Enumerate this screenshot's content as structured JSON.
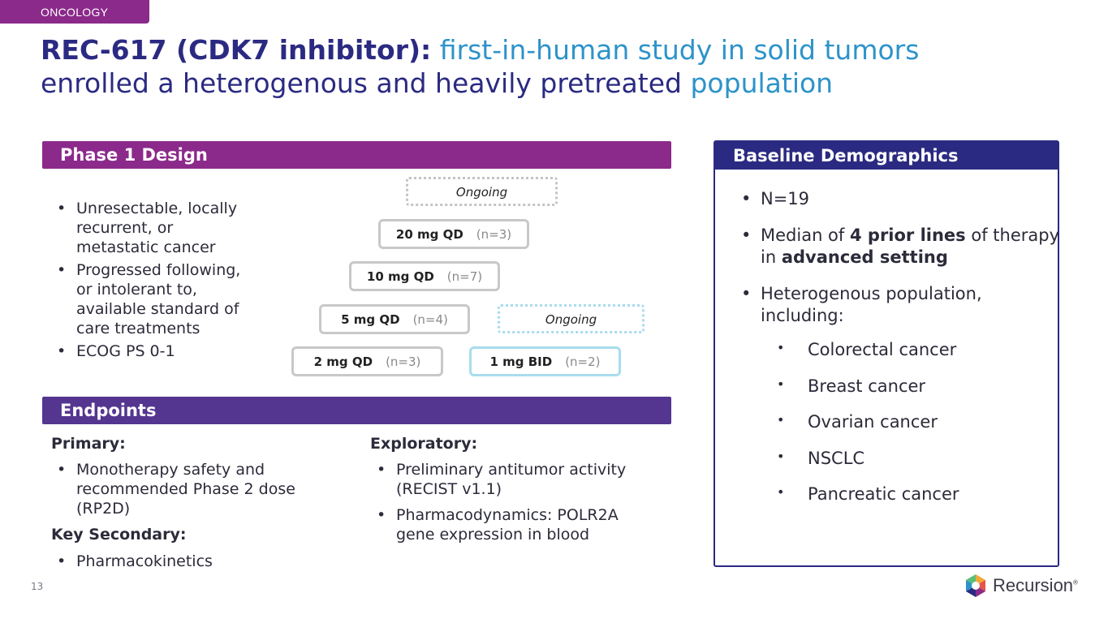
{
  "section_tag": "ONCOLOGY",
  "title": {
    "bold": "REC-617 (CDK7 inhibitor):",
    "light_line1": "first-in-human study in solid tumors",
    "line2_dark": "enrolled a heterogenous and heavily pretreated",
    "line2_light": "population"
  },
  "phase_design": {
    "header": "Phase 1 Design",
    "bullets": [
      "Unresectable, locally recurrent, or metastatic cancer",
      "Progressed following, or intolerant to, available standard of care treatments",
      "ECOG PS 0-1"
    ],
    "doses": {
      "d20": {
        "label": "20 mg QD",
        "n": "(n=3)"
      },
      "d10": {
        "label": "10 mg QD",
        "n": "(n=7)"
      },
      "d5": {
        "label": "5 mg QD",
        "n": "(n=4)"
      },
      "d2": {
        "label": "2 mg QD",
        "n": "(n=3)"
      },
      "bid1": {
        "label": "1 mg BID",
        "n": "(n=2)"
      }
    },
    "ongoing_top": "Ongoing",
    "ongoing_bid": "Ongoing"
  },
  "endpoints": {
    "header": "Endpoints",
    "primary_label": "Primary:",
    "primary_items": [
      "Monotherapy safety and recommended Phase 2 dose (RP2D)"
    ],
    "secondary_label": "Key Secondary:",
    "secondary_items": [
      "Pharmacokinetics"
    ],
    "exploratory_label": "Exploratory:",
    "exploratory_items": [
      "Preliminary antitumor activity (RECIST v1.1)",
      "Pharmacodynamics: POLR2A gene expression in blood"
    ]
  },
  "baseline": {
    "header": "Baseline Demographics",
    "n": "N=19",
    "median_pre": "Median of ",
    "median_bold1": "4 prior lines",
    "median_mid": " of therapy in ",
    "median_bold2": "advanced setting",
    "heterogenous": "Heterogenous population, including:",
    "cancers": [
      "Colorectal cancer",
      "Breast cancer",
      "Ovarian cancer",
      "NSCLC",
      "Pancreatic cancer"
    ]
  },
  "page_number": "13",
  "logo": {
    "word": "Recursion",
    "mark": "®"
  },
  "colors": {
    "purple": "#8b2a8a",
    "violet": "#54358f",
    "navy": "#2b2a82",
    "blue": "#2d93c9",
    "light_blue": "#a9dcee"
  }
}
